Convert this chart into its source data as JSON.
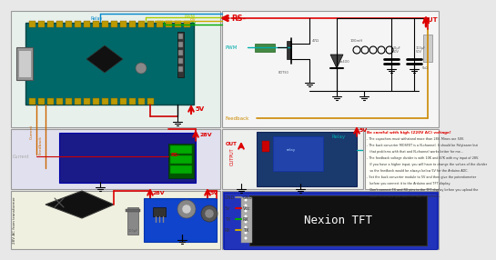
{
  "bg_color": "#e8e8e8",
  "arduino_bg": "#e8f0ec",
  "arduino_board": "#1a6060",
  "arduino_usb": "#888888",
  "boost_bg": "#e0e0ee",
  "boost_board": "#1a1a80",
  "boost_green": "#006600",
  "transformer_bg": "#f0f0e0",
  "buck_schematic_bg": "#f5f5f5",
  "relay_bg": "#eef0ee",
  "relay_board": "#1a3a6e",
  "notes_bg": "#fffff8",
  "tft_bg": "#2233aa",
  "tft_screen": "#111111",
  "red": "#dd0000",
  "cyan": "#00cccc",
  "orange": "#cc6600",
  "green_wire": "#00aa00",
  "yellow_wire": "#ccaa00",
  "black": "#111111",
  "white": "#ffffff",
  "gray": "#888888",
  "notes_lines": [
    "- The capacitors must withstand more than 28V. Mines are 50V.",
    "- The buck converter MOSFET is a N-channel. It should be Polytarzer but",
    "   that problems with that and N-channel works better for me...",
    "- The feedback voltage divider is with 10K and 47K with my input of 28V.",
    "   If you have a higher input, you will have to change the values of the divider",
    "   so the feedback would be always below 5V for the Arduino ADC.",
    "- Set the buck converter module to 5V and then give the potentiometer",
    "   before you connect it to the Arduino and TFT display.",
    "   Don't connect TX and RX pins to the TFT display before you upload the",
    "   code, otherwise you won't be able to upload..."
  ]
}
